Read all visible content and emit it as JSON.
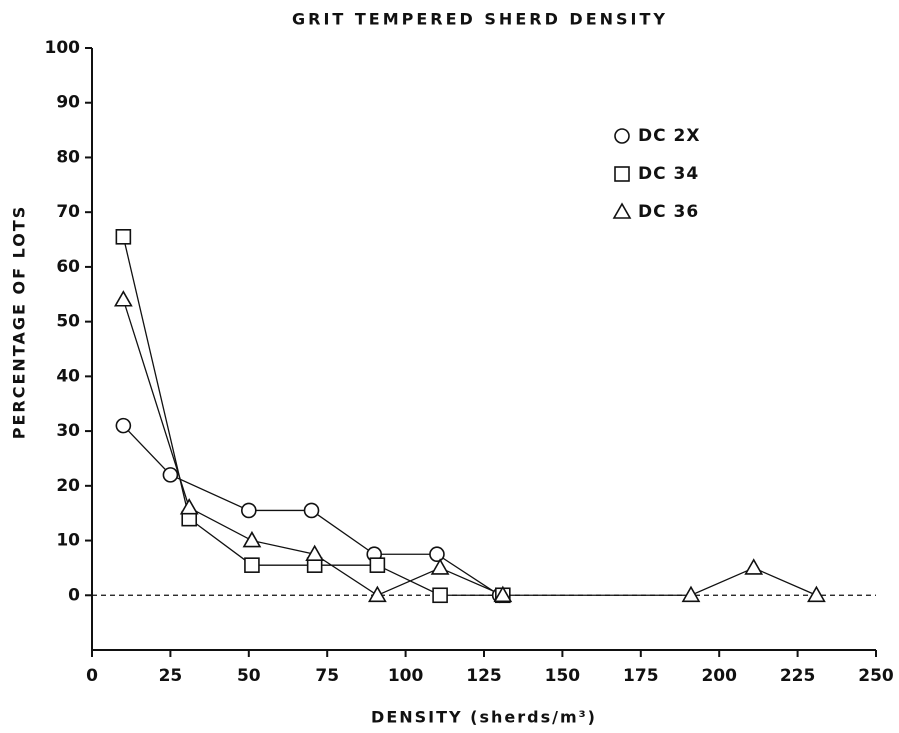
{
  "chart_data": {
    "type": "line",
    "title": "GRIT TEMPERED SHERD DENSITY",
    "xlabel": "DENSITY (sherds/m³)",
    "ylabel": "PERCENTAGE OF LOTS",
    "xlim": [
      0,
      250
    ],
    "xticks": [
      0,
      25,
      50,
      75,
      100,
      125,
      150,
      175,
      200,
      225,
      250
    ],
    "ylim": [
      -10,
      100
    ],
    "yticks": [
      0,
      10,
      20,
      30,
      40,
      50,
      60,
      70,
      80,
      90,
      100
    ],
    "reference_line": 0,
    "legend": "upper right",
    "series": [
      {
        "name": "DC 2X",
        "marker": "circle",
        "color": "#111111",
        "x": [
          10,
          25,
          50,
          70,
          90,
          110,
          130
        ],
        "values": [
          31,
          22,
          15.5,
          15.5,
          7.5,
          7.5,
          0
        ]
      },
      {
        "name": "DC 34",
        "marker": "square",
        "color": "#111111",
        "x": [
          10,
          31,
          51,
          71,
          91,
          111,
          131
        ],
        "values": [
          65.5,
          14,
          5.5,
          5.5,
          5.5,
          0,
          0
        ]
      },
      {
        "name": "DC 36",
        "marker": "triangle",
        "color": "#111111",
        "x": [
          10,
          31,
          51,
          71,
          91,
          111,
          131,
          191,
          211,
          231
        ],
        "values": [
          54,
          16,
          10,
          7.5,
          0,
          5,
          0,
          0,
          5,
          0
        ]
      }
    ]
  }
}
